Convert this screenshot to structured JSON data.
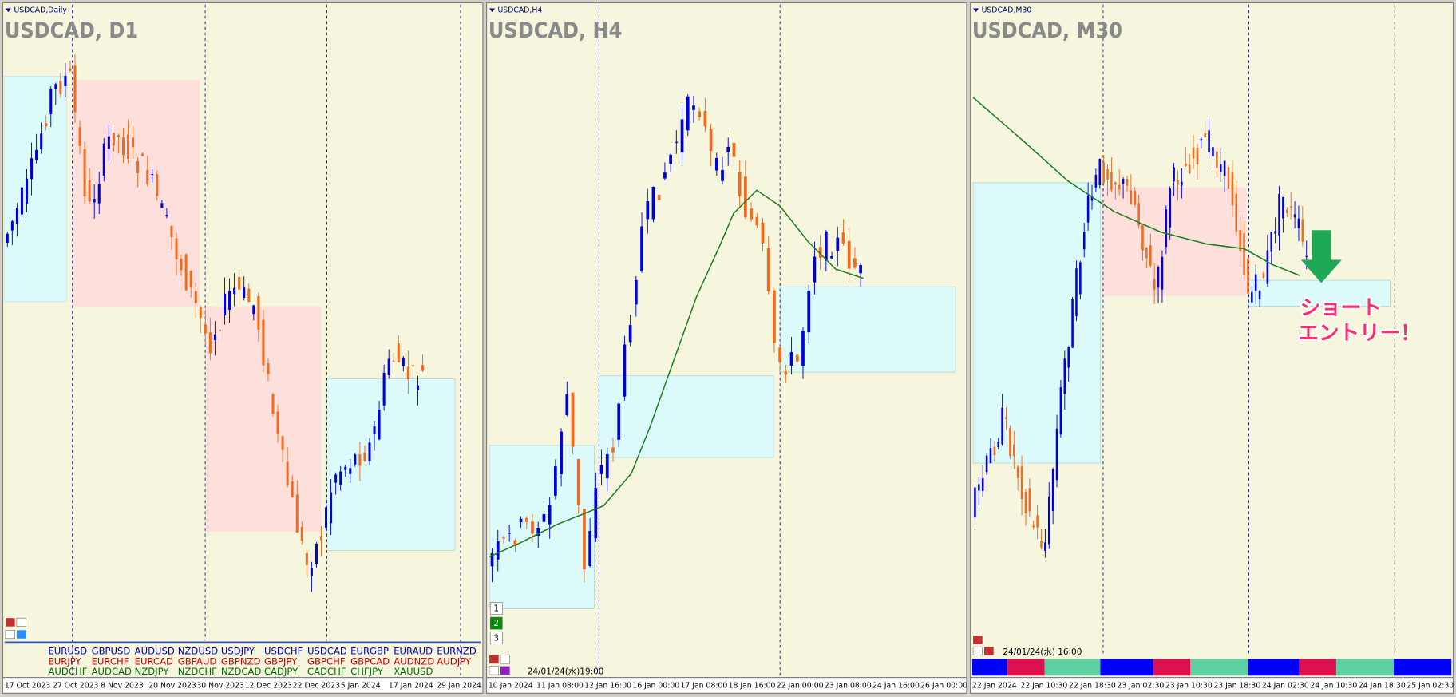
{
  "panels": [
    {
      "window_title": "USDCAD,Daily",
      "symbol_label": "USDCAD, D1",
      "x_labels": [
        "17 Oct 2023",
        "27 Oct 2023",
        "8 Nov 2023",
        "20 Nov 2023",
        "30 Nov 2023",
        "12 Dec 2023",
        "22 Dec 2023",
        "5 Jan 2024",
        "17 Jan 2024",
        "29 Jan 2024"
      ],
      "pair_rows": [
        [
          "EURUSD",
          "GBPUSD",
          "AUDUSD",
          "NZDUSD",
          "USDJPY",
          "USDCHF",
          "USDCAD",
          "EURGBP",
          "EURAUD",
          "EURNZD"
        ],
        [
          "EURJPY",
          "EURCHF",
          "EURCAD",
          "GBPAUD",
          "GBPNZD",
          "GBPJPY",
          "GBPCHF",
          "GBPCAD",
          "AUDNZD",
          "AUDJPY"
        ],
        [
          "AUDCHF",
          "AUDCAD",
          "NZDJPY",
          "NZDCHF",
          "NZDCAD",
          "CADJPY",
          "CADCHF",
          "CHFJPY",
          "XAUUSD"
        ]
      ]
    },
    {
      "window_title": "USDCAD,H4",
      "symbol_label": "USDCAD, H4",
      "x_labels": [
        "10 Jan 2024",
        "11 Jan 08:00",
        "12 Jan 16:00",
        "16 Jan 00:00",
        "17 Jan 08:00",
        "18 Jan 16:00",
        "22 Jan 00:00",
        "23 Jan 08:00",
        "24 Jan 16:00",
        "26 Jan 00:00"
      ],
      "timestamp": "24/01/24(水)19:00",
      "buttons": [
        "1",
        "2",
        "3"
      ]
    },
    {
      "window_title": "USDCAD,M30",
      "symbol_label": "USDCAD, M30",
      "x_labels": [
        "22 Jan 2024",
        "22 Jan 10:30",
        "22 Jan 18:30",
        "23 Jan 02:30",
        "23 Jan 10:30",
        "23 Jan 18:30",
        "24 Jan 02:30",
        "24 Jan 10:30",
        "24 Jan 18:30",
        "25 Jan 02:30"
      ],
      "timestamp": "24/01/24(水) 16:00",
      "annotation": [
        "ショート",
        "エントリー！"
      ]
    }
  ]
}
